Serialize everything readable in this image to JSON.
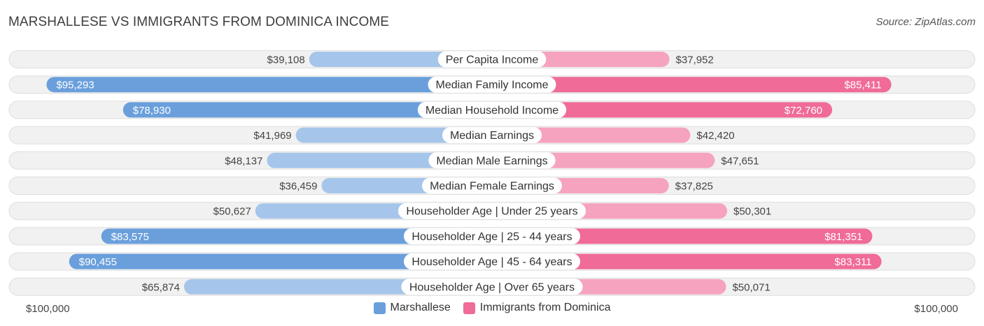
{
  "header": {
    "title": "MARSHALLESE VS IMMIGRANTS FROM DOMINICA INCOME",
    "source": "Source: ZipAtlas.com"
  },
  "colors": {
    "left_strong": "#6a9fdc",
    "left_light": "#a6c5ea",
    "right_strong": "#f06b97",
    "right_light": "#f6a3bf",
    "track": "#f1f1f1",
    "track_border": "#dedede"
  },
  "chart_data": {
    "type": "bar",
    "orientation": "diverging-horizontal",
    "title": "MARSHALLESE VS IMMIGRANTS FROM DOMINICA INCOME",
    "axis_max": 100000,
    "axis_left_label": "$100,000",
    "axis_right_label": "$100,000",
    "legend_position": "bottom",
    "categories": [
      "Per Capita Income",
      "Median Family Income",
      "Median Household Income",
      "Median Earnings",
      "Median Male Earnings",
      "Median Female Earnings",
      "Householder Age | Under 25 years",
      "Householder Age | 25 - 44 years",
      "Householder Age | 45 - 64 years",
      "Householder Age | Over 65 years"
    ],
    "series": [
      {
        "name": "Marshallese",
        "side": "left",
        "values": [
          39108,
          95293,
          78930,
          41969,
          48137,
          36459,
          50627,
          83575,
          90455,
          65874
        ],
        "labels": [
          "$39,108",
          "$95,293",
          "$78,930",
          "$41,969",
          "$48,137",
          "$36,459",
          "$50,627",
          "$83,575",
          "$90,455",
          "$65,874"
        ]
      },
      {
        "name": "Immigrants from Dominica",
        "side": "right",
        "values": [
          37952,
          85411,
          72760,
          42420,
          47651,
          37825,
          50301,
          81351,
          83311,
          50071
        ],
        "labels": [
          "$37,952",
          "$85,411",
          "$72,760",
          "$42,420",
          "$47,651",
          "$37,825",
          "$50,301",
          "$81,351",
          "$83,311",
          "$50,071"
        ]
      }
    ]
  }
}
